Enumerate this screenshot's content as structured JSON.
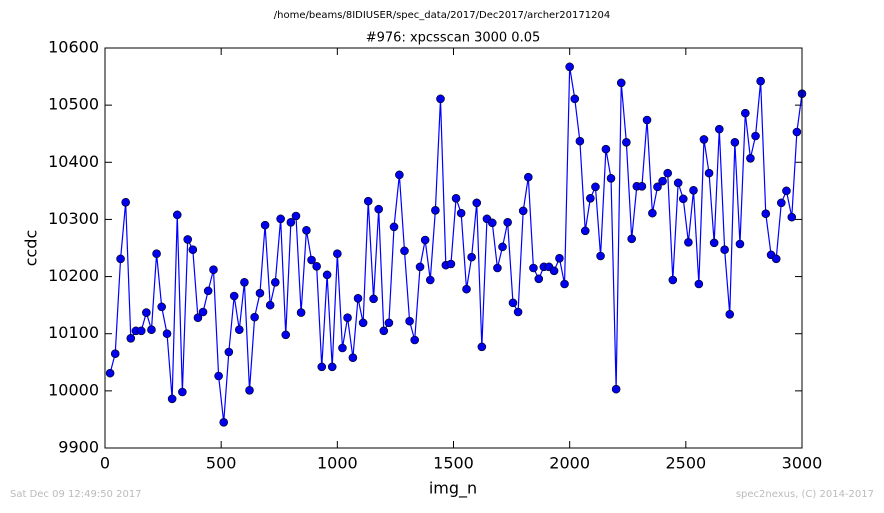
{
  "chart_data": {
    "type": "line",
    "suptitle": "/home/beams/8IDIUSER/spec_data/2017/Dec2017/archer20171204",
    "title": "#976: xpcsscan 3000 0.05",
    "xlabel": "img_n",
    "ylabel": "ccdc",
    "x": [
      22,
      44,
      67,
      89,
      111,
      133,
      156,
      178,
      200,
      222,
      244,
      267,
      289,
      311,
      333,
      356,
      378,
      400,
      422,
      444,
      467,
      489,
      511,
      533,
      556,
      578,
      600,
      622,
      644,
      667,
      689,
      711,
      733,
      756,
      778,
      800,
      822,
      844,
      867,
      889,
      911,
      933,
      956,
      978,
      1000,
      1022,
      1044,
      1067,
      1089,
      1111,
      1133,
      1156,
      1178,
      1200,
      1222,
      1244,
      1267,
      1289,
      1311,
      1333,
      1356,
      1378,
      1400,
      1422,
      1444,
      1467,
      1489,
      1511,
      1533,
      1556,
      1578,
      1600,
      1622,
      1644,
      1667,
      1689,
      1711,
      1733,
      1756,
      1778,
      1800,
      1822,
      1844,
      1867,
      1889,
      1911,
      1933,
      1956,
      1978,
      2000,
      2022,
      2044,
      2067,
      2089,
      2111,
      2133,
      2156,
      2178,
      2200,
      2222,
      2244,
      2267,
      2289,
      2311,
      2333,
      2356,
      2378,
      2400,
      2422,
      2444,
      2467,
      2489,
      2511,
      2533,
      2556,
      2578,
      2600,
      2622,
      2644,
      2667,
      2689,
      2711,
      2733,
      2756,
      2778,
      2800,
      2822,
      2844,
      2867,
      2889,
      2911,
      2933,
      2956,
      2978,
      3000
    ],
    "series": [
      {
        "name": "ccdc",
        "color": "#0000ff",
        "marker_color": "#0000ee",
        "values": [
          10031,
          10065,
          10231,
          10330,
          10092,
          10105,
          10105,
          10137,
          10107,
          10240,
          10147,
          10100,
          9986,
          10308,
          9998,
          10265,
          10247,
          10128,
          10138,
          10175,
          10212,
          10026,
          9945,
          10068,
          10166,
          10107,
          10190,
          10001,
          10129,
          10171,
          10290,
          10150,
          10190,
          10301,
          10098,
          10295,
          10306,
          10137,
          10281,
          10229,
          10218,
          10042,
          10203,
          10042,
          10240,
          10075,
          10128,
          10058,
          10162,
          10119,
          10332,
          10161,
          10318,
          10105,
          10119,
          10287,
          10378,
          10245,
          10122,
          10089,
          10217,
          10264,
          10194,
          10316,
          10511,
          10220,
          10222,
          10337,
          10311,
          10178,
          10234,
          10329,
          10077,
          10301,
          10294,
          10215,
          10252,
          10295,
          10154,
          10138,
          10315,
          10374,
          10215,
          10196,
          10217,
          10217,
          10210,
          10232,
          10187,
          10567,
          10511,
          10437,
          10280,
          10337,
          10357,
          10236,
          10423,
          10372,
          10003,
          10539,
          10435,
          10266,
          10358,
          10358,
          10474,
          10311,
          10357,
          10367,
          10381,
          10194,
          10364,
          10336,
          10260,
          10351,
          10187,
          10440,
          10381,
          10259,
          10458,
          10247,
          10134,
          10435,
          10257,
          10486,
          10407,
          10446,
          10542,
          10310,
          10238,
          10231,
          10329,
          10350,
          10304,
          10453,
          10520
        ]
      }
    ],
    "xlim": [
      0,
      3000
    ],
    "xticks": [
      0,
      500,
      1000,
      1500,
      2000,
      2500,
      3000
    ],
    "ylim": [
      9900,
      10600
    ],
    "yticks": [
      9900,
      10000,
      10100,
      10200,
      10300,
      10400,
      10500,
      10600
    ],
    "grid": false
  },
  "footer": {
    "left": "Sat Dec 09 12:49:50 2017",
    "right": "spec2nexus, (C) 2014-2017"
  }
}
